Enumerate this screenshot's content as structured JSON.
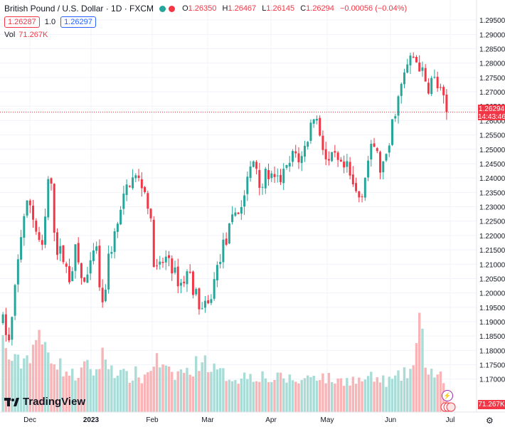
{
  "header": {
    "symbol_title": "British Pound / U.S. Dollar · 1D · FXCM",
    "ohlc": {
      "o_label": "O",
      "o_value": "1.26350",
      "h_label": "H",
      "h_value": "1.26467",
      "l_label": "L",
      "l_value": "1.26145",
      "c_label": "C",
      "c_value": "1.26294",
      "change": "−0.00056 (−0.04%)"
    },
    "bid": "1.26287",
    "spread": "1.0",
    "ask": "1.26297",
    "vol_label": "Vol",
    "vol_value": "71.267K"
  },
  "price_axis": {
    "last_price_label": "1.26294",
    "countdown": "14:43:46",
    "volume_label": "71.267K"
  },
  "branding": {
    "logo_text": "TradingView"
  },
  "colors": {
    "up": "#26a69a",
    "down": "#f23645",
    "up_vol": "#a9dcd6",
    "down_vol": "#f8b4b6",
    "bid": "#f23645",
    "ask": "#2962ff"
  },
  "chart_data": {
    "type": "candlestick",
    "title": "British Pound / U.S. Dollar · 1D · FXCM",
    "y_ticks": [
      "1.17000",
      "1.17500",
      "1.18000",
      "1.18500",
      "1.19000",
      "1.19500",
      "1.20000",
      "1.20500",
      "1.21000",
      "1.21500",
      "1.22000",
      "1.22500",
      "1.23000",
      "1.23500",
      "1.24000",
      "1.24500",
      "1.25000",
      "1.25500",
      "1.26000",
      "1.26500",
      "1.27000",
      "1.27500",
      "1.28000",
      "1.28500",
      "1.29000",
      "1.29500"
    ],
    "y_range": [
      1.1625,
      1.2985
    ],
    "x_labels": [
      "Dec",
      "2023",
      "Feb",
      "Mar",
      "Apr",
      "May",
      "Jun",
      "Jul"
    ],
    "last_price": 1.26294,
    "price_path": [
      1.19,
      1.182,
      1.205,
      1.226,
      1.232,
      1.222,
      1.214,
      1.244,
      1.216,
      1.213,
      1.205,
      1.215,
      1.203,
      1.206,
      1.217,
      1.193,
      1.213,
      1.221,
      1.23,
      1.239,
      1.24,
      1.238,
      1.231,
      1.207,
      1.21,
      1.213,
      1.206,
      1.203,
      1.208,
      1.2,
      1.194,
      1.195,
      1.205,
      1.215,
      1.22,
      1.228,
      1.23,
      1.24,
      1.247,
      1.237,
      1.242,
      1.238,
      1.24,
      1.243,
      1.249,
      1.246,
      1.254,
      1.263,
      1.255,
      1.244,
      1.247,
      1.243,
      1.243,
      1.236,
      1.233,
      1.245,
      1.252,
      1.243,
      1.246,
      1.262,
      1.27,
      1.279,
      1.282,
      1.279,
      1.271,
      1.275,
      1.27,
      1.263
    ],
    "volume": [
      0.55,
      0.42,
      0.38,
      0.4,
      0.45,
      0.58,
      0.52,
      0.48,
      0.4,
      0.34,
      0.3,
      0.28,
      0.33,
      0.36,
      0.3,
      0.44,
      0.38,
      0.32,
      0.29,
      0.27,
      0.3,
      0.26,
      0.31,
      0.42,
      0.35,
      0.3,
      0.28,
      0.33,
      0.3,
      0.36,
      0.42,
      0.38,
      0.32,
      0.3,
      0.28,
      0.27,
      0.26,
      0.3,
      0.28,
      0.29,
      0.26,
      0.25,
      0.27,
      0.26,
      0.25,
      0.24,
      0.27,
      0.3,
      0.28,
      0.26,
      0.25,
      0.24,
      0.26,
      0.25,
      0.24,
      0.27,
      0.26,
      0.25,
      0.24,
      0.25,
      0.28,
      0.3,
      0.36,
      0.7,
      0.34,
      0.3,
      0.28,
      0.12
    ]
  }
}
